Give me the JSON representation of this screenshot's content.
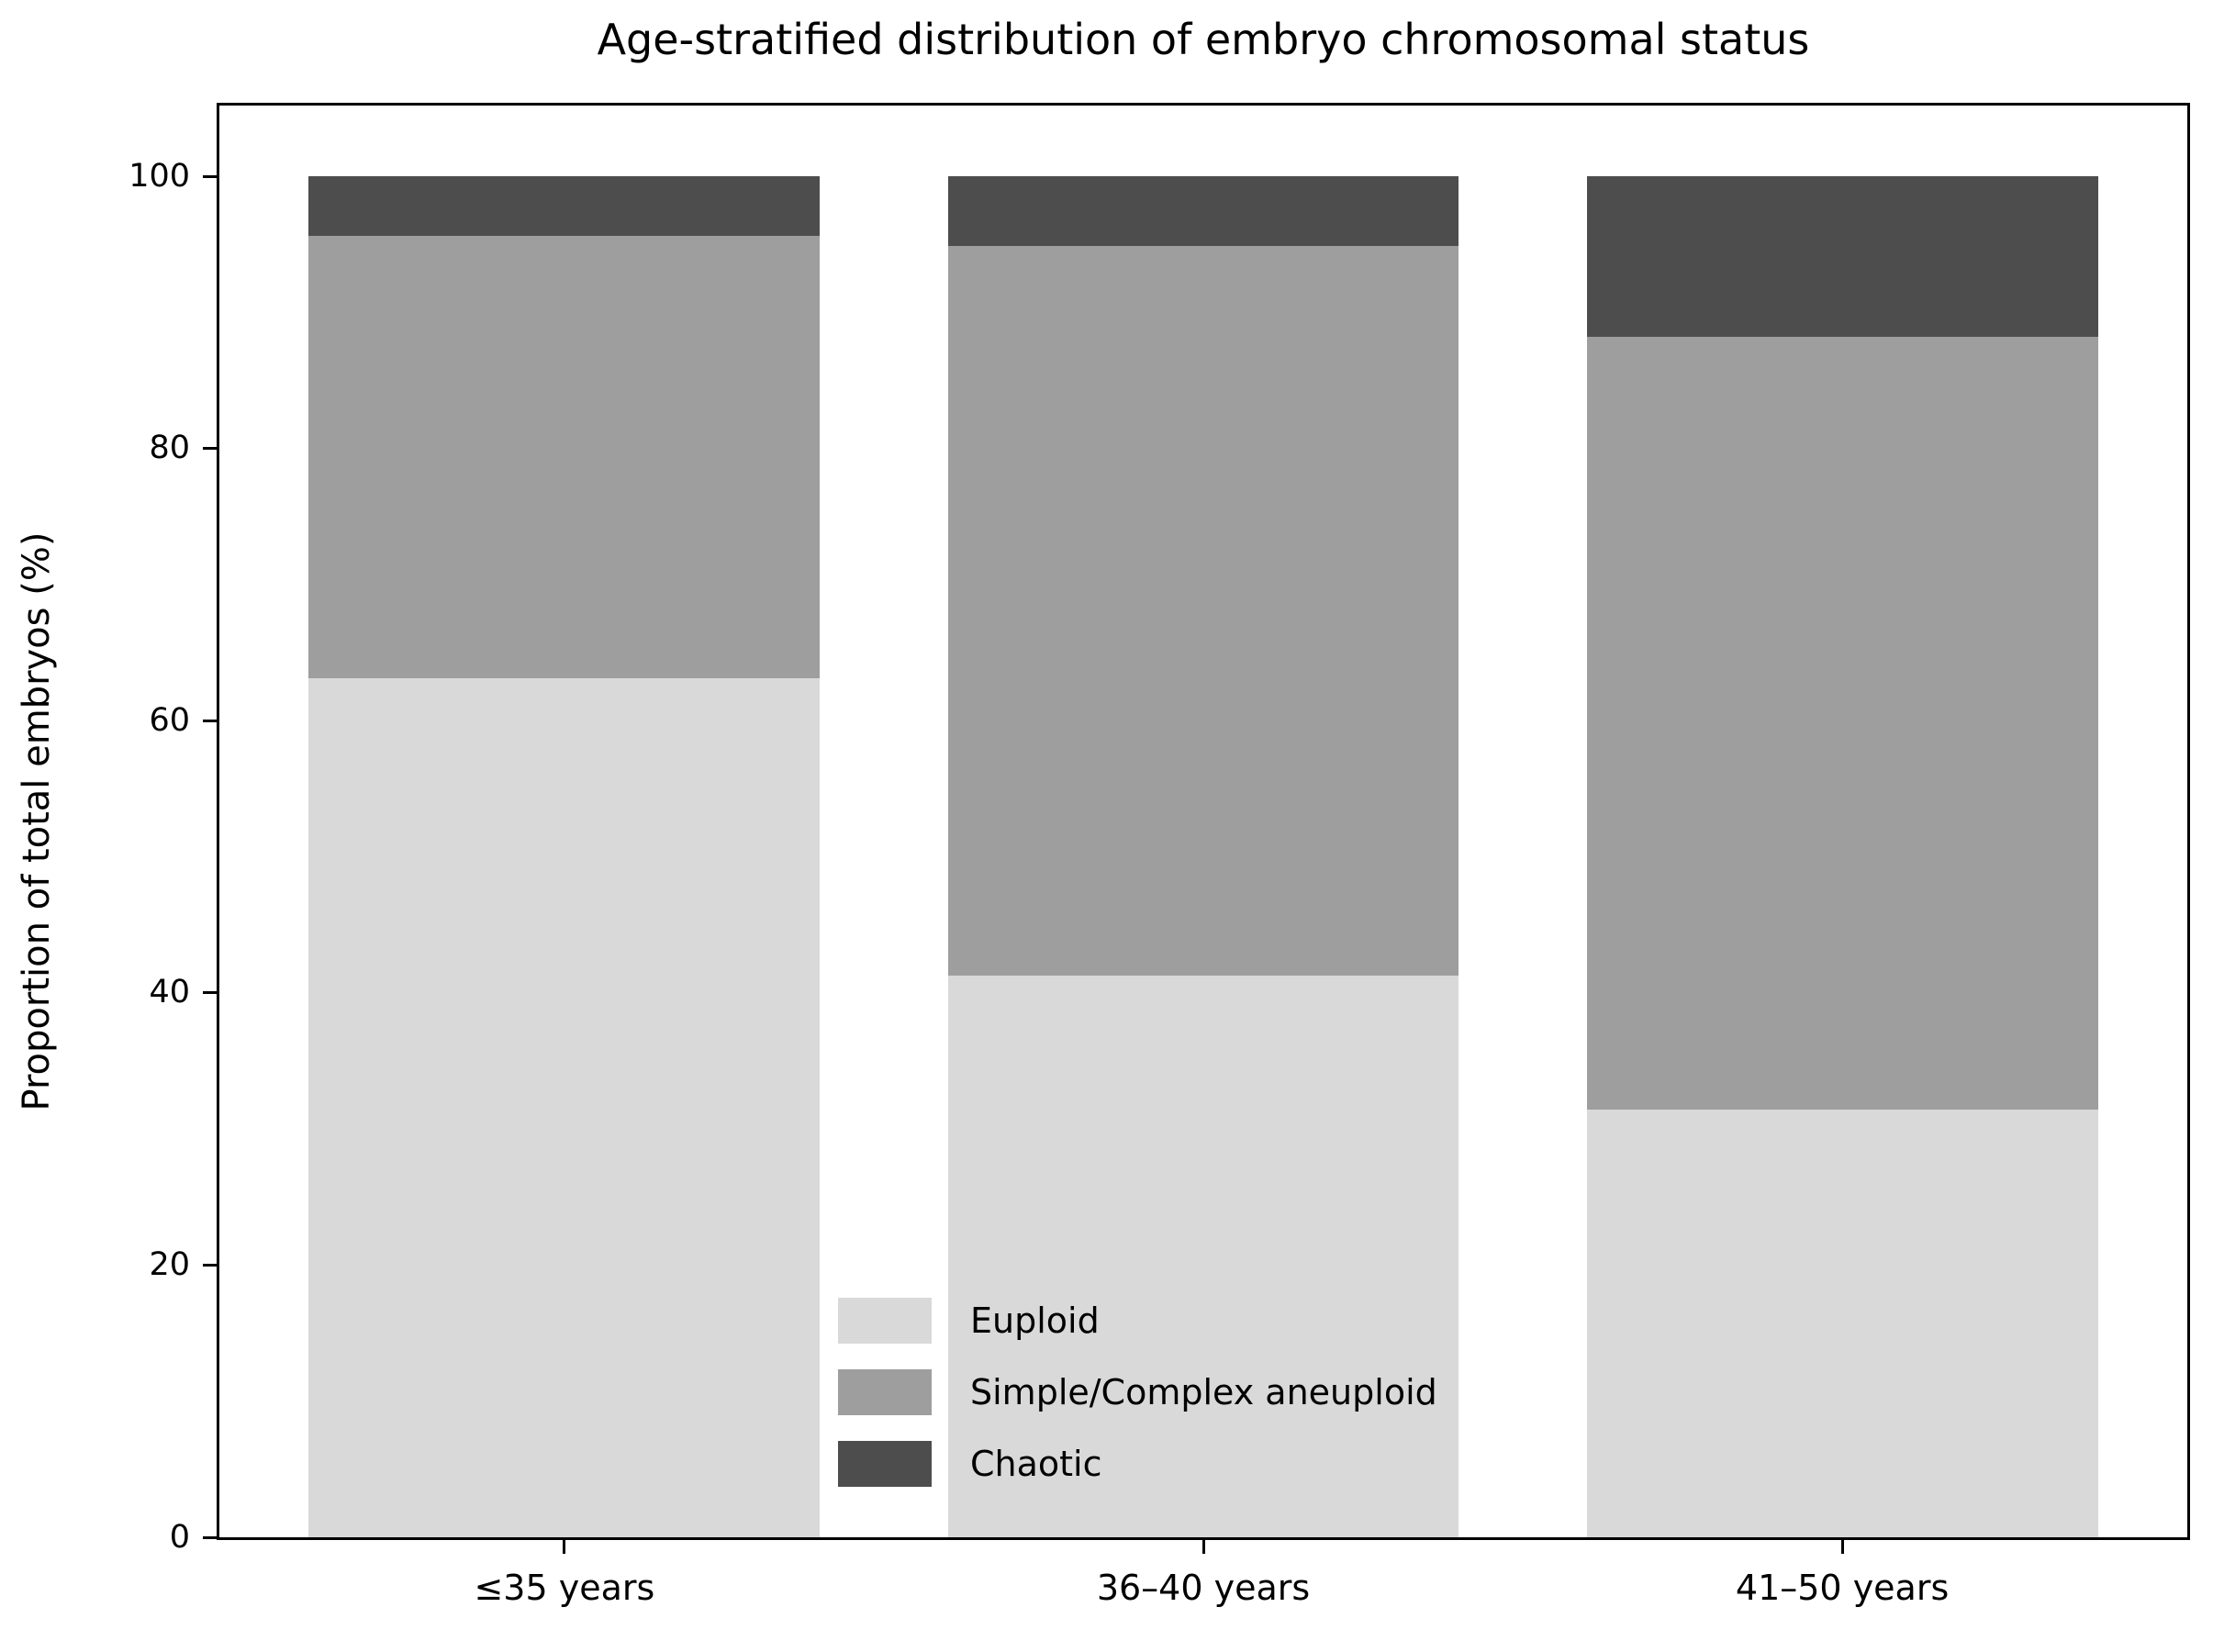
{
  "chart_data": {
    "type": "bar",
    "stacked": true,
    "title": "Age-stratified distribution of embryo chromosomal status",
    "xlabel": "",
    "ylabel": "Proportion of total embryos (%)",
    "categories": [
      "≤35 years",
      "36–40 years",
      "41–50 years"
    ],
    "series": [
      {
        "name": "Euploid",
        "color": "#d9d9d9",
        "values": [
          63.1,
          41.3,
          31.4
        ]
      },
      {
        "name": "Simple/Complex aneuploid",
        "color": "#9e9e9e",
        "values": [
          32.5,
          53.6,
          56.8
        ]
      },
      {
        "name": "Chaotic",
        "color": "#4d4d4d",
        "values": [
          4.4,
          5.1,
          11.8
        ]
      }
    ],
    "yticks": [
      0,
      20,
      40,
      60,
      80,
      100
    ],
    "ylim": [
      0,
      105.2
    ],
    "grid": false,
    "legend_position": "lower center, inside axes, no frame",
    "axis_color": "#000000",
    "background_color": "#ffffff"
  }
}
